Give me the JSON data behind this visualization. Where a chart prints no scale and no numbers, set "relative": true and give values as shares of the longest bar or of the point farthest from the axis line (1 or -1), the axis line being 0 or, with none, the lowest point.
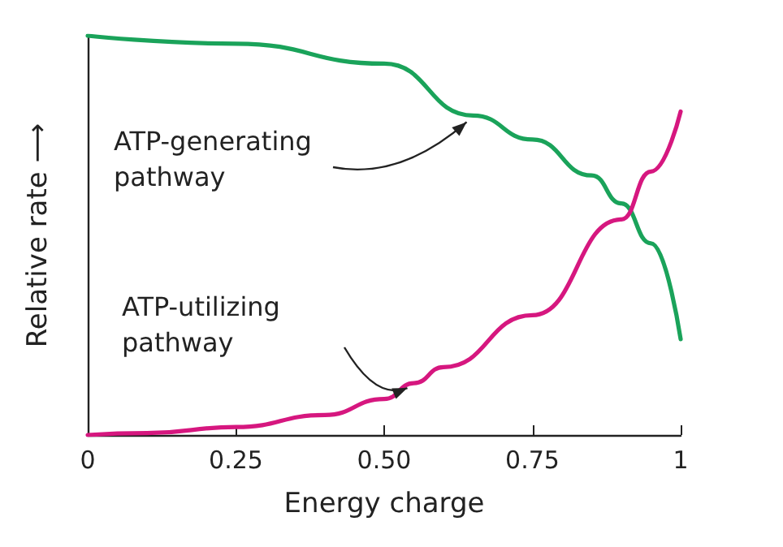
{
  "chart_data": {
    "type": "line",
    "relative": true,
    "xlabel": "Energy charge",
    "ylabel": "Relative rate ⟶",
    "xlim": [
      0,
      1
    ],
    "xticks": [
      0,
      0.25,
      {
        "value": 0.5,
        "label": "0.50"
      },
      0.75,
      1
    ],
    "grid": false,
    "legend": false,
    "marker": "none",
    "line_style": "solid",
    "series": [
      {
        "name": "ATP-generating\npathway",
        "color": "#1aa35a",
        "x": [
          0,
          0.25,
          0.5,
          0.65,
          0.75,
          0.85,
          0.9,
          0.95,
          1
        ],
        "values": [
          1,
          0.98,
          0.93,
          0.8,
          0.74,
          0.65,
          0.58,
          0.48,
          0.24
        ]
      },
      {
        "name": "ATP-utilizing\npathway",
        "color": "#d6177f",
        "x": [
          0,
          0.1,
          0.25,
          0.4,
          0.5,
          0.55,
          0.6,
          0.75,
          0.9,
          0.95,
          1
        ],
        "values": [
          0,
          0.005,
          0.02,
          0.05,
          0.09,
          0.13,
          0.17,
          0.3,
          0.54,
          0.66,
          0.81
        ]
      }
    ]
  }
}
